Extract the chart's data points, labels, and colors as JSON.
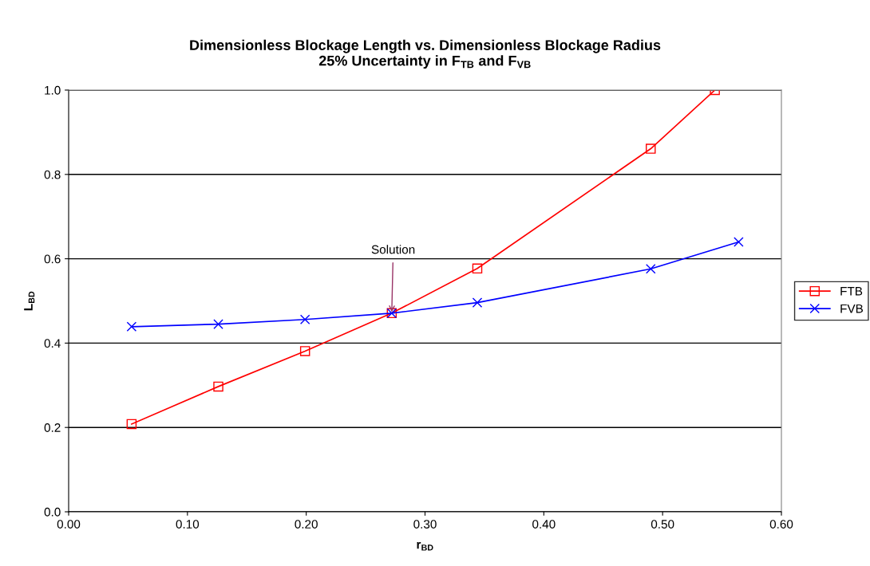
{
  "chart_data": {
    "type": "line",
    "title": "Dimensionless Blockage Length vs. Dimensionless Blockage Radius\n25% Uncertainty in F$_{TB}$ and F$_{VB}$",
    "xlabel": "r$_{BD}$",
    "ylabel": "L$_{BD}$",
    "series": [
      {
        "name": "FTB",
        "color": "#ff0000",
        "marker": "square",
        "x": [
          0.053,
          0.126,
          0.199,
          0.272,
          0.344,
          0.49,
          0.544
        ],
        "values": [
          0.208,
          0.297,
          0.381,
          0.471,
          0.577,
          0.861,
          1.0
        ]
      },
      {
        "name": "FVB",
        "color": "#0000ff",
        "marker": "cross",
        "x": [
          0.053,
          0.126,
          0.199,
          0.272,
          0.344,
          0.49,
          0.564
        ],
        "values": [
          0.439,
          0.445,
          0.456,
          0.471,
          0.496,
          0.576,
          0.64
        ]
      }
    ],
    "annotations": [
      {
        "text": "Solution",
        "x": 0.272,
        "y": 0.471
      }
    ],
    "xlim": [
      0,
      0.6
    ],
    "xticks": [
      {
        "value": 0,
        "label": "0.00"
      },
      {
        "value": 0.1,
        "label": "0.10"
      },
      {
        "value": 0.2,
        "label": "0.20"
      },
      {
        "value": 0.3,
        "label": "0.30"
      },
      {
        "value": 0.4,
        "label": "0.40"
      },
      {
        "value": 0.5,
        "label": "0.50"
      },
      {
        "value": 0.6,
        "label": "0.60"
      }
    ],
    "ylim": [
      0,
      1
    ],
    "yticks": [
      {
        "value": 0,
        "label": "0.0"
      },
      {
        "value": 0.2,
        "label": "0.2"
      },
      {
        "value": 0.4,
        "label": "0.4"
      },
      {
        "value": 0.6,
        "label": "0.6"
      },
      {
        "value": 0.8,
        "label": "0.8"
      },
      {
        "value": 1,
        "label": "1.0"
      }
    ],
    "grid": "y",
    "legend": "right",
    "line_style": "solid"
  }
}
